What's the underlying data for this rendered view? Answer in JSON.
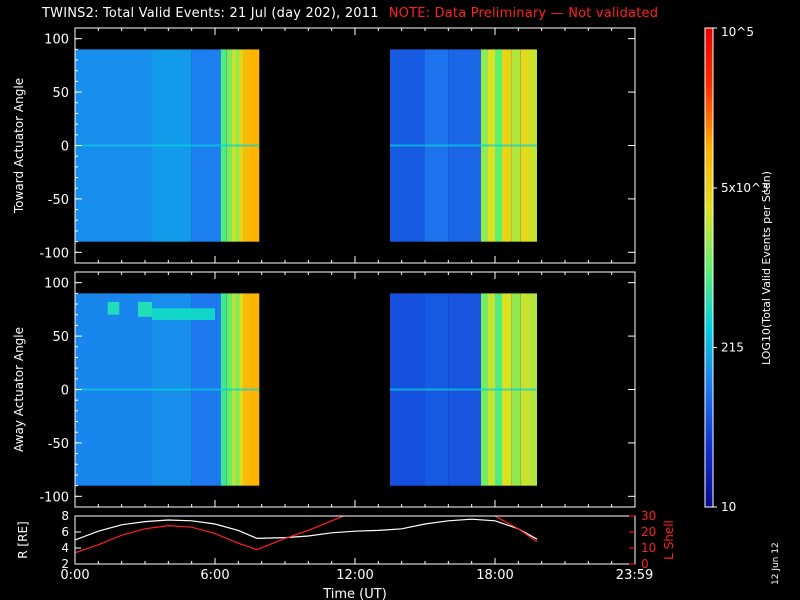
{
  "title": "TWINS2: Total Valid Events: 21 Jul (day 202), 2011",
  "note": "NOTE: Data Preliminary — Not validated",
  "side_date": "12 Jun 12",
  "colors": {
    "background": "#000000",
    "axes": "#ffffff",
    "note": "#ff2020",
    "r_line": "#ffffff",
    "lshell_line": "#ff2020",
    "colormap": [
      "#0a0a8c",
      "#1030d0",
      "#1e78f0",
      "#00d0e0",
      "#60f070",
      "#e0e020",
      "#ffb000",
      "#ff3000",
      "#e80000"
    ]
  },
  "chart_data": [
    {
      "type": "heatmap",
      "name": "toward",
      "ylabel": "Toward Actuator Angle",
      "ylim": [
        -110,
        110
      ],
      "yticks": [
        100,
        50,
        0,
        -50,
        -100
      ],
      "xlim": [
        0,
        24
      ],
      "data_y_range": [
        -90,
        90
      ],
      "blocks": [
        {
          "x_start": 0.0,
          "x_end": 7.9,
          "columns": [
            {
              "x": 0.0,
              "level": 0.28
            },
            {
              "x": 3.3,
              "level": 0.3
            },
            {
              "x": 5.0,
              "level": 0.26
            },
            {
              "x": 6.25,
              "level": 0.48
            },
            {
              "x": 6.5,
              "level": 0.52
            },
            {
              "x": 6.7,
              "level": 0.6
            },
            {
              "x": 6.9,
              "level": 0.55
            },
            {
              "x": 7.05,
              "level": 0.65
            },
            {
              "x": 7.2,
              "level": 0.72
            },
            {
              "x": 7.5,
              "level": 0.74
            }
          ]
        },
        {
          "x_start": 13.5,
          "x_end": 19.8,
          "columns": [
            {
              "x": 13.5,
              "level": 0.2
            },
            {
              "x": 15.0,
              "level": 0.24
            },
            {
              "x": 16.0,
              "level": 0.22
            },
            {
              "x": 17.4,
              "level": 0.55
            },
            {
              "x": 17.7,
              "level": 0.62
            },
            {
              "x": 18.0,
              "level": 0.5
            },
            {
              "x": 18.3,
              "level": 0.66
            },
            {
              "x": 18.7,
              "level": 0.58
            },
            {
              "x": 19.1,
              "level": 0.64
            },
            {
              "x": 19.5,
              "level": 0.6
            }
          ]
        }
      ],
      "bands": []
    },
    {
      "type": "heatmap",
      "name": "away",
      "ylabel": "Away Actuator Angle",
      "ylim": [
        -110,
        110
      ],
      "yticks": [
        100,
        50,
        0,
        -50,
        -100
      ],
      "xlim": [
        0,
        24
      ],
      "data_y_range": [
        -90,
        90
      ],
      "blocks": [
        {
          "x_start": 0.0,
          "x_end": 7.9,
          "columns": [
            {
              "x": 0.0,
              "level": 0.27
            },
            {
              "x": 3.3,
              "level": 0.28
            },
            {
              "x": 5.0,
              "level": 0.25
            },
            {
              "x": 6.25,
              "level": 0.46
            },
            {
              "x": 6.5,
              "level": 0.5
            },
            {
              "x": 6.7,
              "level": 0.58
            },
            {
              "x": 6.9,
              "level": 0.53
            },
            {
              "x": 7.05,
              "level": 0.64
            },
            {
              "x": 7.2,
              "level": 0.72
            },
            {
              "x": 7.5,
              "level": 0.74
            }
          ]
        },
        {
          "x_start": 13.5,
          "x_end": 19.8,
          "columns": [
            {
              "x": 13.5,
              "level": 0.18
            },
            {
              "x": 15.0,
              "level": 0.2
            },
            {
              "x": 16.0,
              "level": 0.19
            },
            {
              "x": 17.4,
              "level": 0.52
            },
            {
              "x": 17.7,
              "level": 0.6
            },
            {
              "x": 18.0,
              "level": 0.48
            },
            {
              "x": 18.3,
              "level": 0.62
            },
            {
              "x": 18.7,
              "level": 0.55
            },
            {
              "x": 19.1,
              "level": 0.6
            },
            {
              "x": 19.5,
              "level": 0.58
            }
          ]
        }
      ],
      "bands": [
        {
          "x_start": 1.4,
          "x_end": 1.9,
          "y_low": 70,
          "y_high": 82,
          "level": 0.42
        },
        {
          "x_start": 2.7,
          "x_end": 3.3,
          "y_low": 68,
          "y_high": 82,
          "level": 0.42
        },
        {
          "x_start": 3.3,
          "x_end": 6.0,
          "y_low": 65,
          "y_high": 76,
          "level": 0.4
        }
      ]
    },
    {
      "type": "line",
      "name": "orbit",
      "ylabel": "R [R<sub>E</sub>]",
      "ylabel_text": "R [RE]",
      "y2label": "L Shell",
      "xlabel": "Time (UT)",
      "xlim": [
        0,
        24
      ],
      "ylim": [
        2,
        8
      ],
      "yticks": [
        2,
        4,
        6,
        8
      ],
      "y2lim": [
        0,
        30
      ],
      "y2ticks": [
        0,
        10,
        20,
        30
      ],
      "xtick_labels": [
        "0:00",
        "6:00",
        "12:00",
        "18:00",
        "23:59"
      ],
      "xtick_values": [
        0,
        6,
        12,
        18,
        23.98
      ],
      "series": [
        {
          "axis": "left",
          "x": [
            0,
            1,
            2,
            3,
            4,
            5,
            6,
            7,
            7.8,
            9,
            10,
            11,
            12,
            13,
            14,
            15,
            16,
            17,
            18,
            19,
            19.8
          ],
          "y": [
            5.0,
            6.1,
            6.9,
            7.3,
            7.5,
            7.4,
            7.0,
            6.2,
            5.2,
            5.3,
            5.5,
            5.9,
            6.1,
            6.2,
            6.4,
            7.0,
            7.4,
            7.6,
            7.4,
            6.4,
            5.1
          ]
        },
        {
          "axis": "right",
          "x": [
            0,
            1,
            2,
            3,
            4,
            5,
            6,
            7,
            7.8,
            9,
            10,
            11,
            12,
            13.0,
            17.5,
            18,
            19,
            19.8
          ],
          "y": [
            7,
            12,
            18,
            22,
            24,
            23,
            19,
            13,
            9,
            16,
            21,
            27,
            33,
            36,
            36,
            30,
            22,
            14
          ]
        }
      ]
    }
  ],
  "colorbar": {
    "label": "LOG10(Total Valid Events per Scan)",
    "tick_labels": [
      "10",
      "215",
      "5x10^3",
      "10^5"
    ],
    "tick_levels": [
      0.0,
      0.333,
      0.666,
      1.0
    ]
  }
}
